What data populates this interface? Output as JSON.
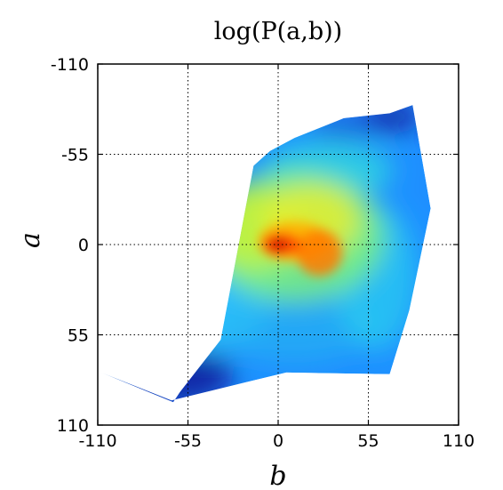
{
  "chart_data": {
    "type": "heatmap",
    "title": "log(P(a,b))",
    "xlabel": "b",
    "ylabel": "a",
    "xlim": [
      -110,
      110
    ],
    "ylim": [
      -110,
      110
    ],
    "y_axis_inverted": true,
    "xticks": [
      -110,
      -55,
      0,
      55,
      110
    ],
    "yticks": [
      -110,
      -55,
      0,
      55,
      110
    ],
    "xtick_labels": [
      "-110",
      "-55",
      "0",
      "55",
      "110"
    ],
    "ytick_labels": [
      "-110",
      "-55",
      "0",
      "55",
      "110"
    ],
    "grid": true,
    "colormap": "jet",
    "density_region_vertices_ba": [
      [
        -108,
        78
      ],
      [
        -64,
        96
      ],
      [
        -60,
        90
      ],
      [
        -35,
        58
      ],
      [
        -15,
        -48
      ],
      [
        -5,
        -57
      ],
      [
        10,
        -65
      ],
      [
        40,
        -77
      ],
      [
        68,
        -80
      ],
      [
        82,
        -85
      ],
      [
        93,
        -22
      ],
      [
        80,
        40
      ],
      [
        68,
        79
      ],
      [
        5,
        78
      ],
      [
        -20,
        84
      ],
      [
        -65,
        95
      ]
    ],
    "peak_ba": [
      0,
      0
    ],
    "secondary_peak_ba": [
      25,
      5
    ]
  }
}
